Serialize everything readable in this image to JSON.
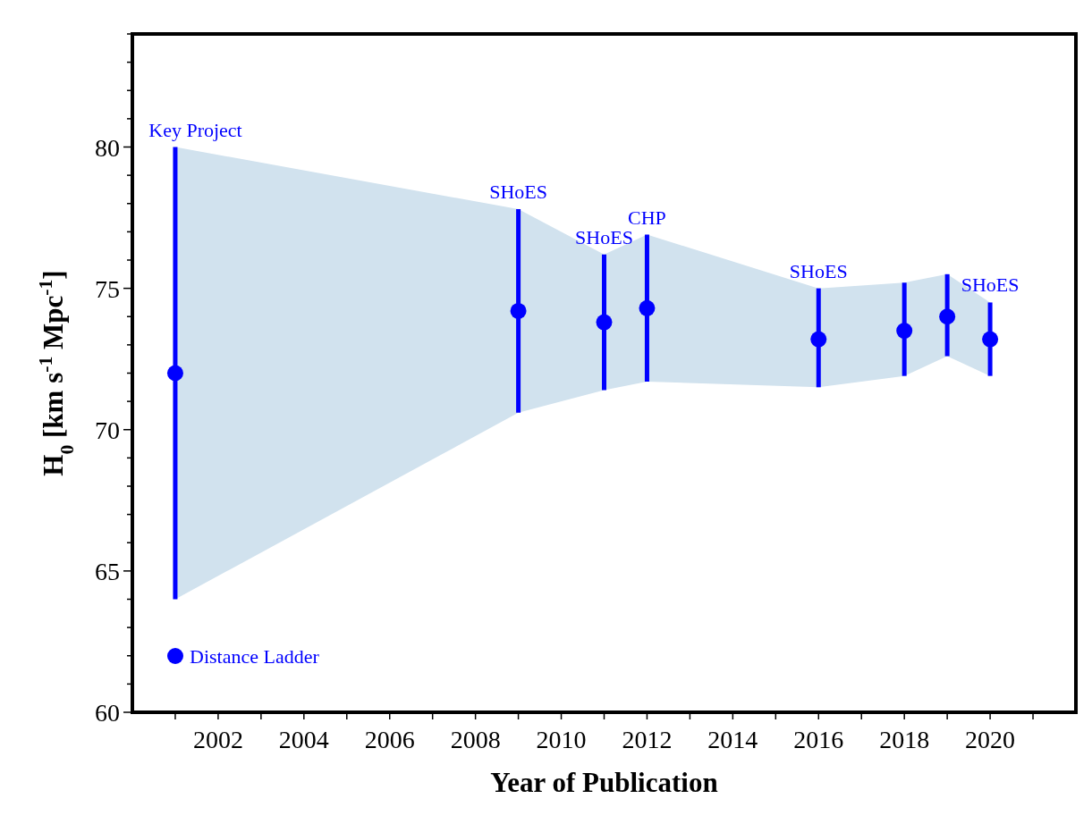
{
  "chart_data": {
    "type": "scatter",
    "xlabel": "Year of Publication",
    "ylabel": "H$_{0}$ [km s$^{-1}$ Mpc$^{-1}$]",
    "xlim": [
      2000,
      2022
    ],
    "ylim": [
      60,
      84
    ],
    "xticks": [
      {
        "value": 2001,
        "label": null
      },
      2002,
      {
        "value": 2003,
        "label": null
      },
      2004,
      {
        "value": 2005,
        "label": null
      },
      2006,
      {
        "value": 2007,
        "label": null
      },
      2008,
      {
        "value": 2009,
        "label": null
      },
      2010,
      {
        "value": 2011,
        "label": null
      },
      2012,
      {
        "value": 2013,
        "label": null
      },
      2014,
      {
        "value": 2015,
        "label": null
      },
      2016,
      {
        "value": 2017,
        "label": null
      },
      2018,
      {
        "value": 2019,
        "label": null
      },
      2020,
      {
        "value": 2021,
        "label": null
      }
    ],
    "yticks": [
      60,
      {
        "value": 61,
        "label": null
      },
      {
        "value": 62,
        "label": null
      },
      {
        "value": 63,
        "label": null
      },
      {
        "value": 64,
        "label": null
      },
      65,
      {
        "value": 66,
        "label": null
      },
      {
        "value": 67,
        "label": null
      },
      {
        "value": 68,
        "label": null
      },
      {
        "value": 69,
        "label": null
      },
      70,
      {
        "value": 71,
        "label": null
      },
      {
        "value": 72,
        "label": null
      },
      {
        "value": 73,
        "label": null
      },
      {
        "value": 74,
        "label": null
      },
      75,
      {
        "value": 76,
        "label": null
      },
      {
        "value": 77,
        "label": null
      },
      {
        "value": 78,
        "label": null
      },
      {
        "value": 79,
        "label": null
      },
      80,
      {
        "value": 81,
        "label": null
      },
      {
        "value": 82,
        "label": null
      },
      {
        "value": 83,
        "label": null
      },
      {
        "value": 84,
        "label": null
      }
    ],
    "x": [
      2001,
      2009,
      2011,
      2012,
      2016,
      2018,
      2019,
      2020
    ],
    "series": [
      {
        "name": "Distance Ladder",
        "color": "#0000ff",
        "values": [
          72,
          74.2,
          73.8,
          74.3,
          73.2,
          73.5,
          74.0,
          73.2
        ],
        "errors": [
          [
            64,
            80
          ],
          [
            70.6,
            77.8
          ],
          [
            71.4,
            76.2
          ],
          [
            71.7,
            76.9
          ],
          [
            71.5,
            75.0
          ],
          [
            71.9,
            75.2
          ],
          [
            72.6,
            75.5
          ],
          [
            71.9,
            74.5
          ]
        ],
        "lower": [
          64,
          70.6,
          71.4,
          71.7,
          71.5,
          71.9,
          72.6,
          71.9
        ],
        "upper": [
          80,
          77.8,
          76.2,
          76.9,
          75.0,
          75.2,
          75.5,
          74.5
        ]
      }
    ],
    "annotations": [
      {
        "text": "Key Project",
        "x": 2001,
        "y": 80
      },
      {
        "text": "SHoES",
        "x": 2009,
        "y": 77.8
      },
      {
        "text": "SHoES",
        "x": 2011,
        "y": 76.2
      },
      {
        "text": "CHP",
        "x": 2012,
        "y": 76.9
      },
      {
        "text": "SHoES",
        "x": 2016,
        "y": 75.0
      },
      {
        "text": "SHoES",
        "x": 2020,
        "y": 74.5
      }
    ],
    "marker": "circle",
    "legend": "bottom left",
    "grid": false
  }
}
